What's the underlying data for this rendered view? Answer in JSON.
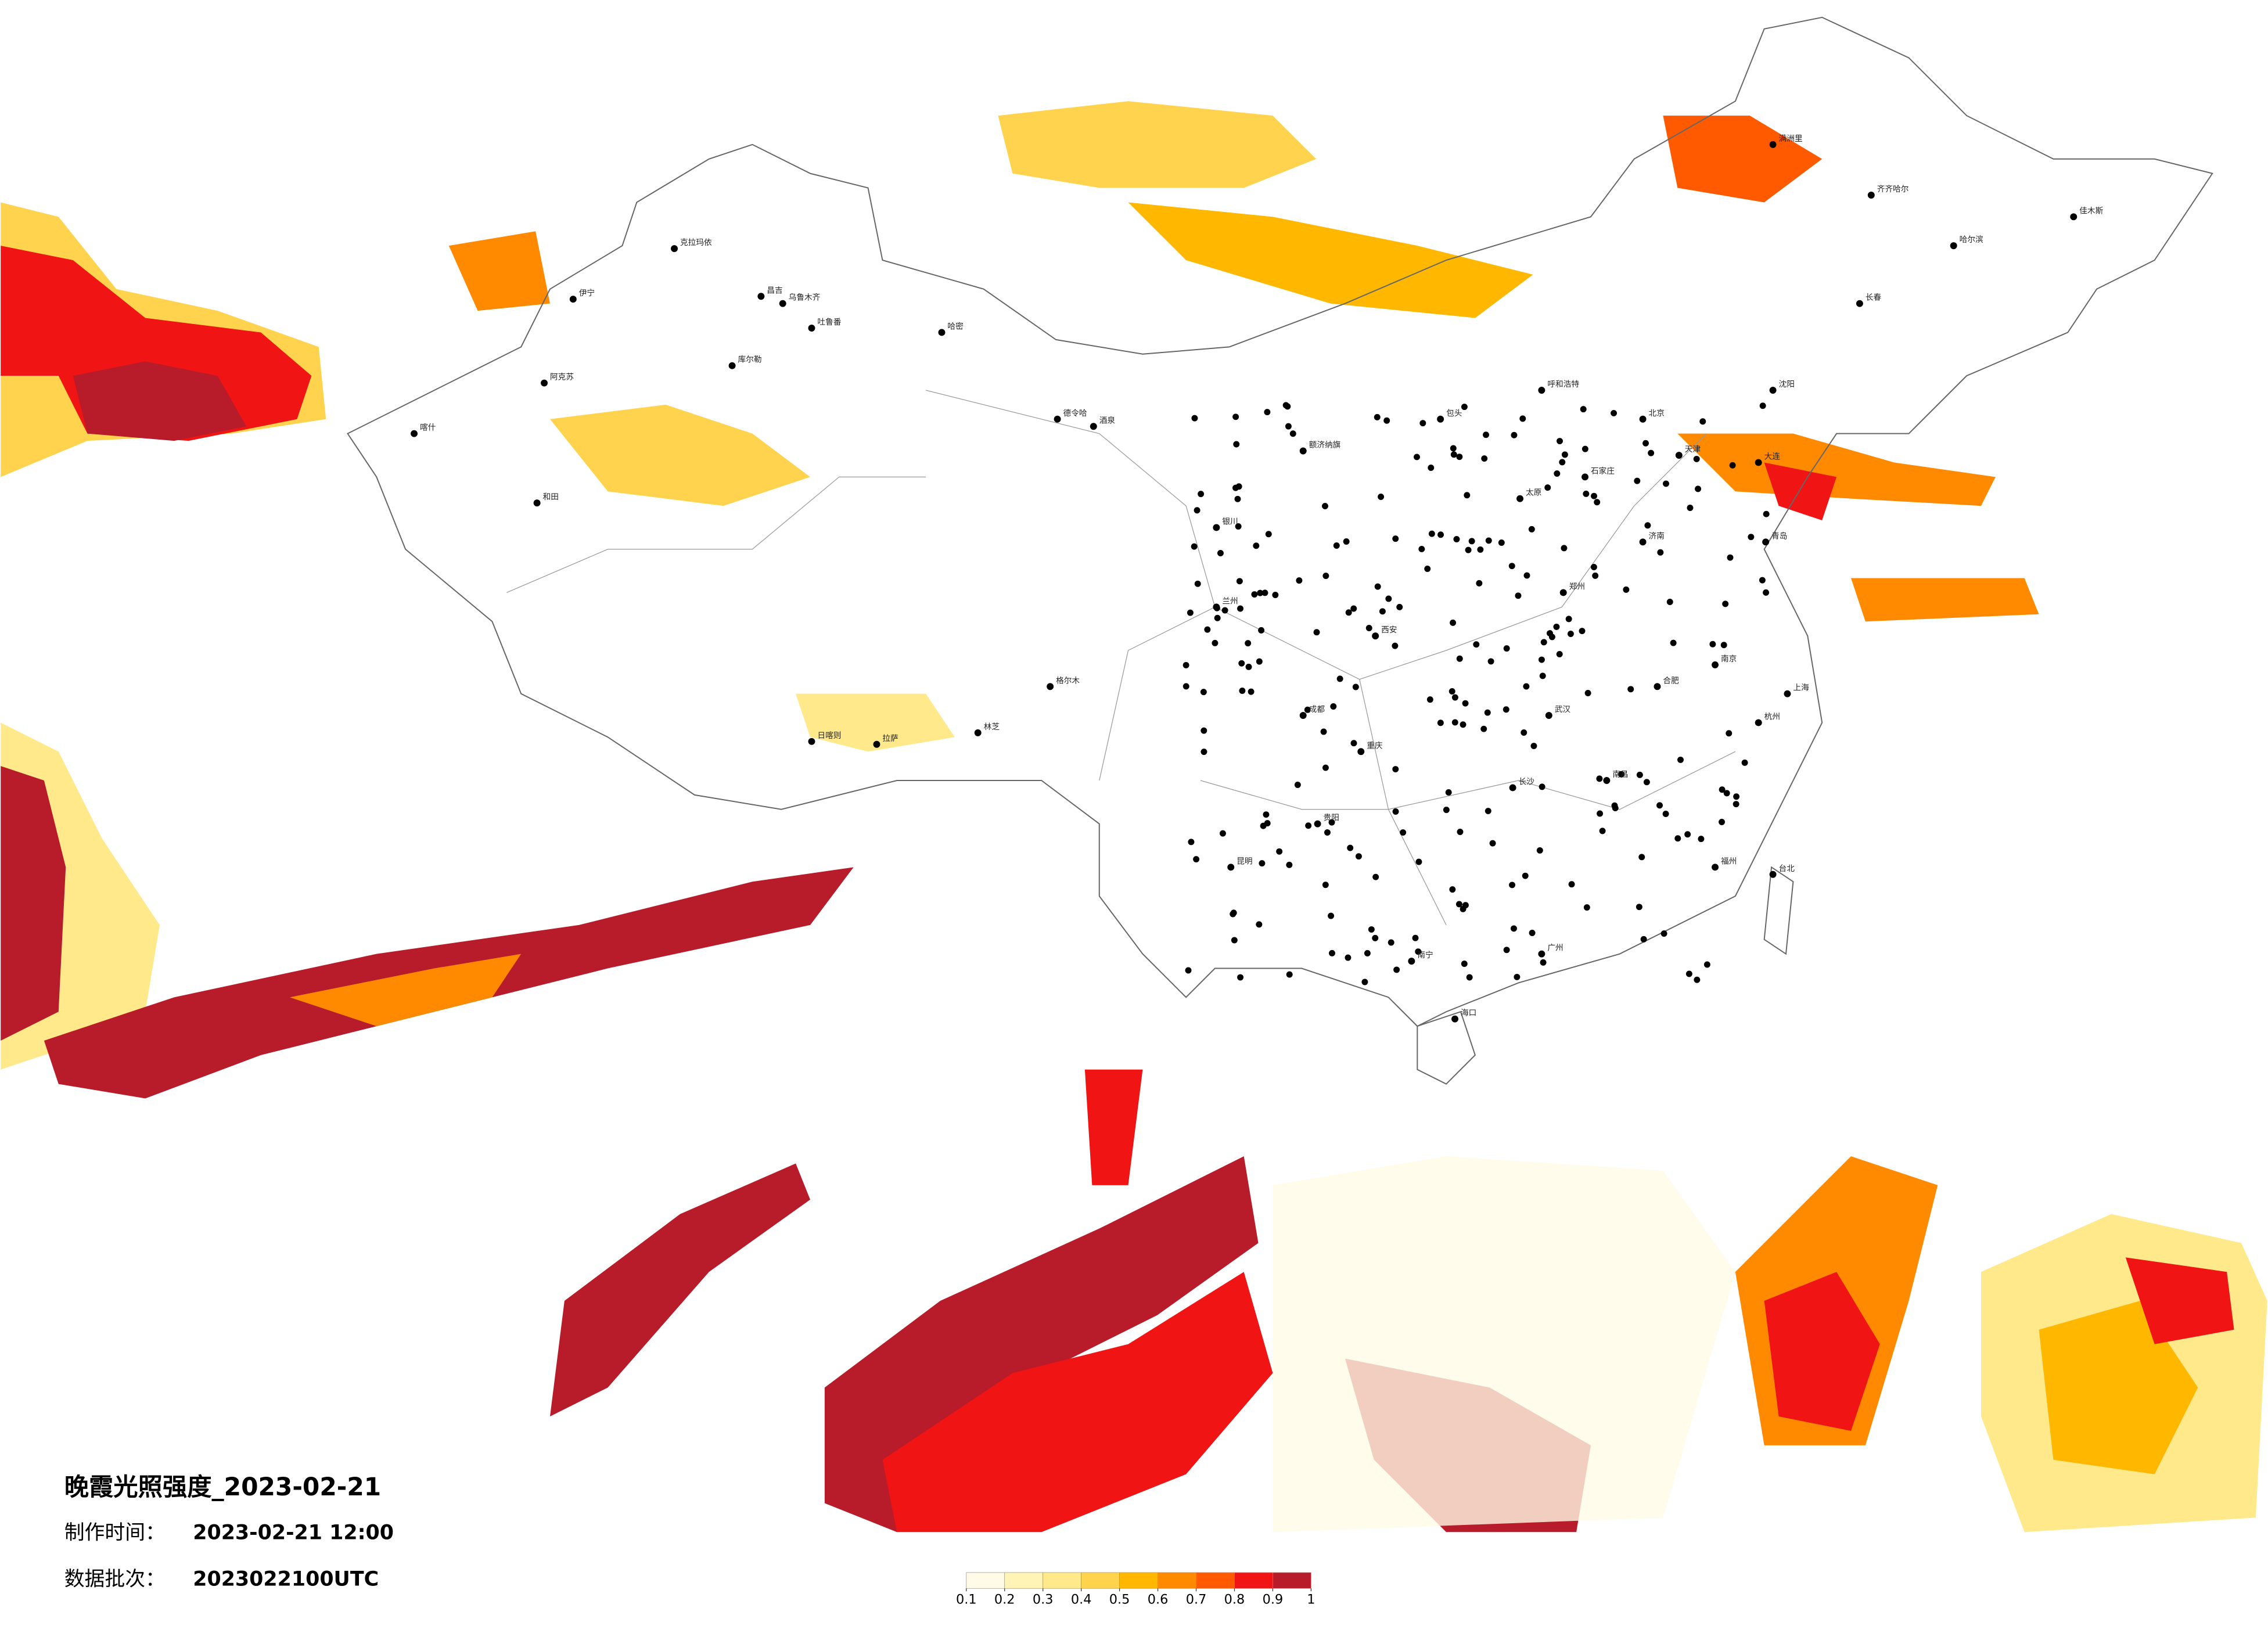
{
  "title": "晚霞光照强度_2023-02-21",
  "made_time": {
    "label": "制作时间：",
    "value": "2023-02-21 12:00"
  },
  "batch": {
    "label": "数据批次：",
    "value": "2023022100UTC"
  },
  "legend": {
    "colors": [
      "#fffbe6",
      "#fff4b5",
      "#ffe98a",
      "#ffd34d",
      "#ffb700",
      "#ff8a00",
      "#ff5a00",
      "#f01414",
      "#b81c2a"
    ],
    "ticks": [
      0.1,
      0.2,
      0.3,
      0.4,
      0.5,
      0.6,
      0.7,
      0.8,
      0.9,
      1
    ]
  },
  "cities": [
    "克拉玛依",
    "伊宁",
    "昌吉",
    "乌鲁木齐",
    "吐鲁番",
    "哈密",
    "库尔勒",
    "阿克苏",
    "喀什",
    "和田",
    "德令哈",
    "格尔木",
    "日喀则",
    "拉萨",
    "林芝",
    "酒泉",
    "额济纳旗",
    "银川",
    "呼和浩特",
    "包头",
    "北京",
    "天津",
    "石家庄",
    "太原",
    "济南",
    "郑州",
    "西安",
    "兰州",
    "成都",
    "重庆",
    "武汉",
    "长沙",
    "南昌",
    "合肥",
    "南京",
    "上海",
    "杭州",
    "福州",
    "广州",
    "南宁",
    "昆明",
    "贵阳",
    "海口",
    "台北",
    "沈阳",
    "长春",
    "哈尔滨",
    "大连",
    "青岛",
    "满洲里",
    "齐齐哈尔",
    "佳木斯"
  ]
}
